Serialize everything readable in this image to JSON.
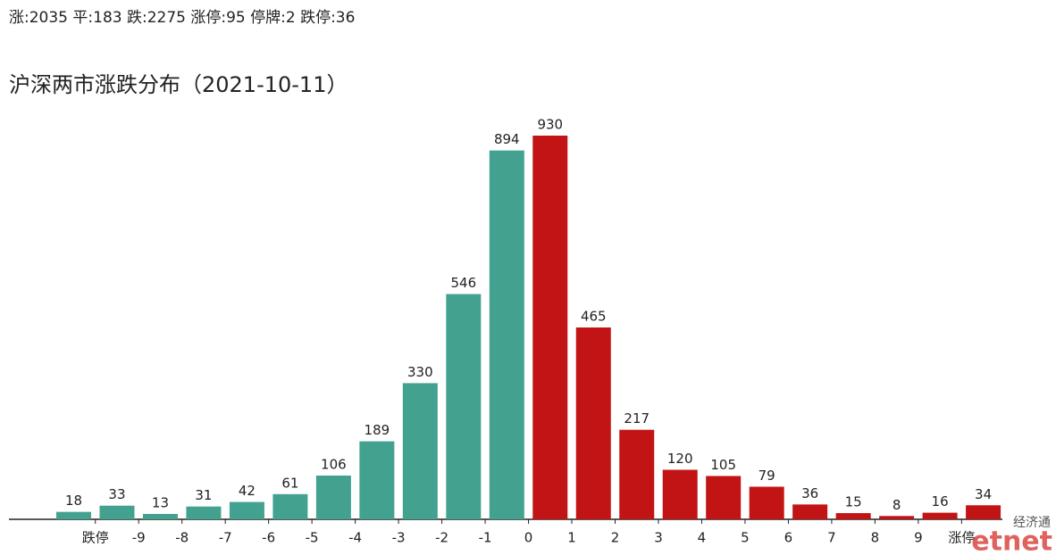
{
  "summary": "涨:2035 平:183 跌:2275 涨停:95 停牌:2 跌停:36",
  "watermark": {
    "top": "经济通",
    "bottom": "etnet"
  },
  "chart_data": {
    "type": "bar",
    "title": "沪深两市涨跌分布（2021-10-11）",
    "values": [
      18,
      33,
      13,
      31,
      42,
      61,
      106,
      189,
      330,
      546,
      894,
      930,
      465,
      217,
      120,
      105,
      79,
      36,
      15,
      8,
      16,
      34
    ],
    "colors": [
      "#42a18f",
      "#42a18f",
      "#42a18f",
      "#42a18f",
      "#42a18f",
      "#42a18f",
      "#42a18f",
      "#42a18f",
      "#42a18f",
      "#42a18f",
      "#42a18f",
      "#c21414",
      "#c21414",
      "#c21414",
      "#c21414",
      "#c21414",
      "#c21414",
      "#c21414",
      "#c21414",
      "#c21414",
      "#c21414",
      "#c21414"
    ],
    "tick_labels": [
      "跌停",
      "-9",
      "-8",
      "-7",
      "-6",
      "-5",
      "-4",
      "-3",
      "-2",
      "-1",
      "0",
      "1",
      "2",
      "3",
      "4",
      "5",
      "6",
      "7",
      "8",
      "9",
      "涨停"
    ]
  }
}
